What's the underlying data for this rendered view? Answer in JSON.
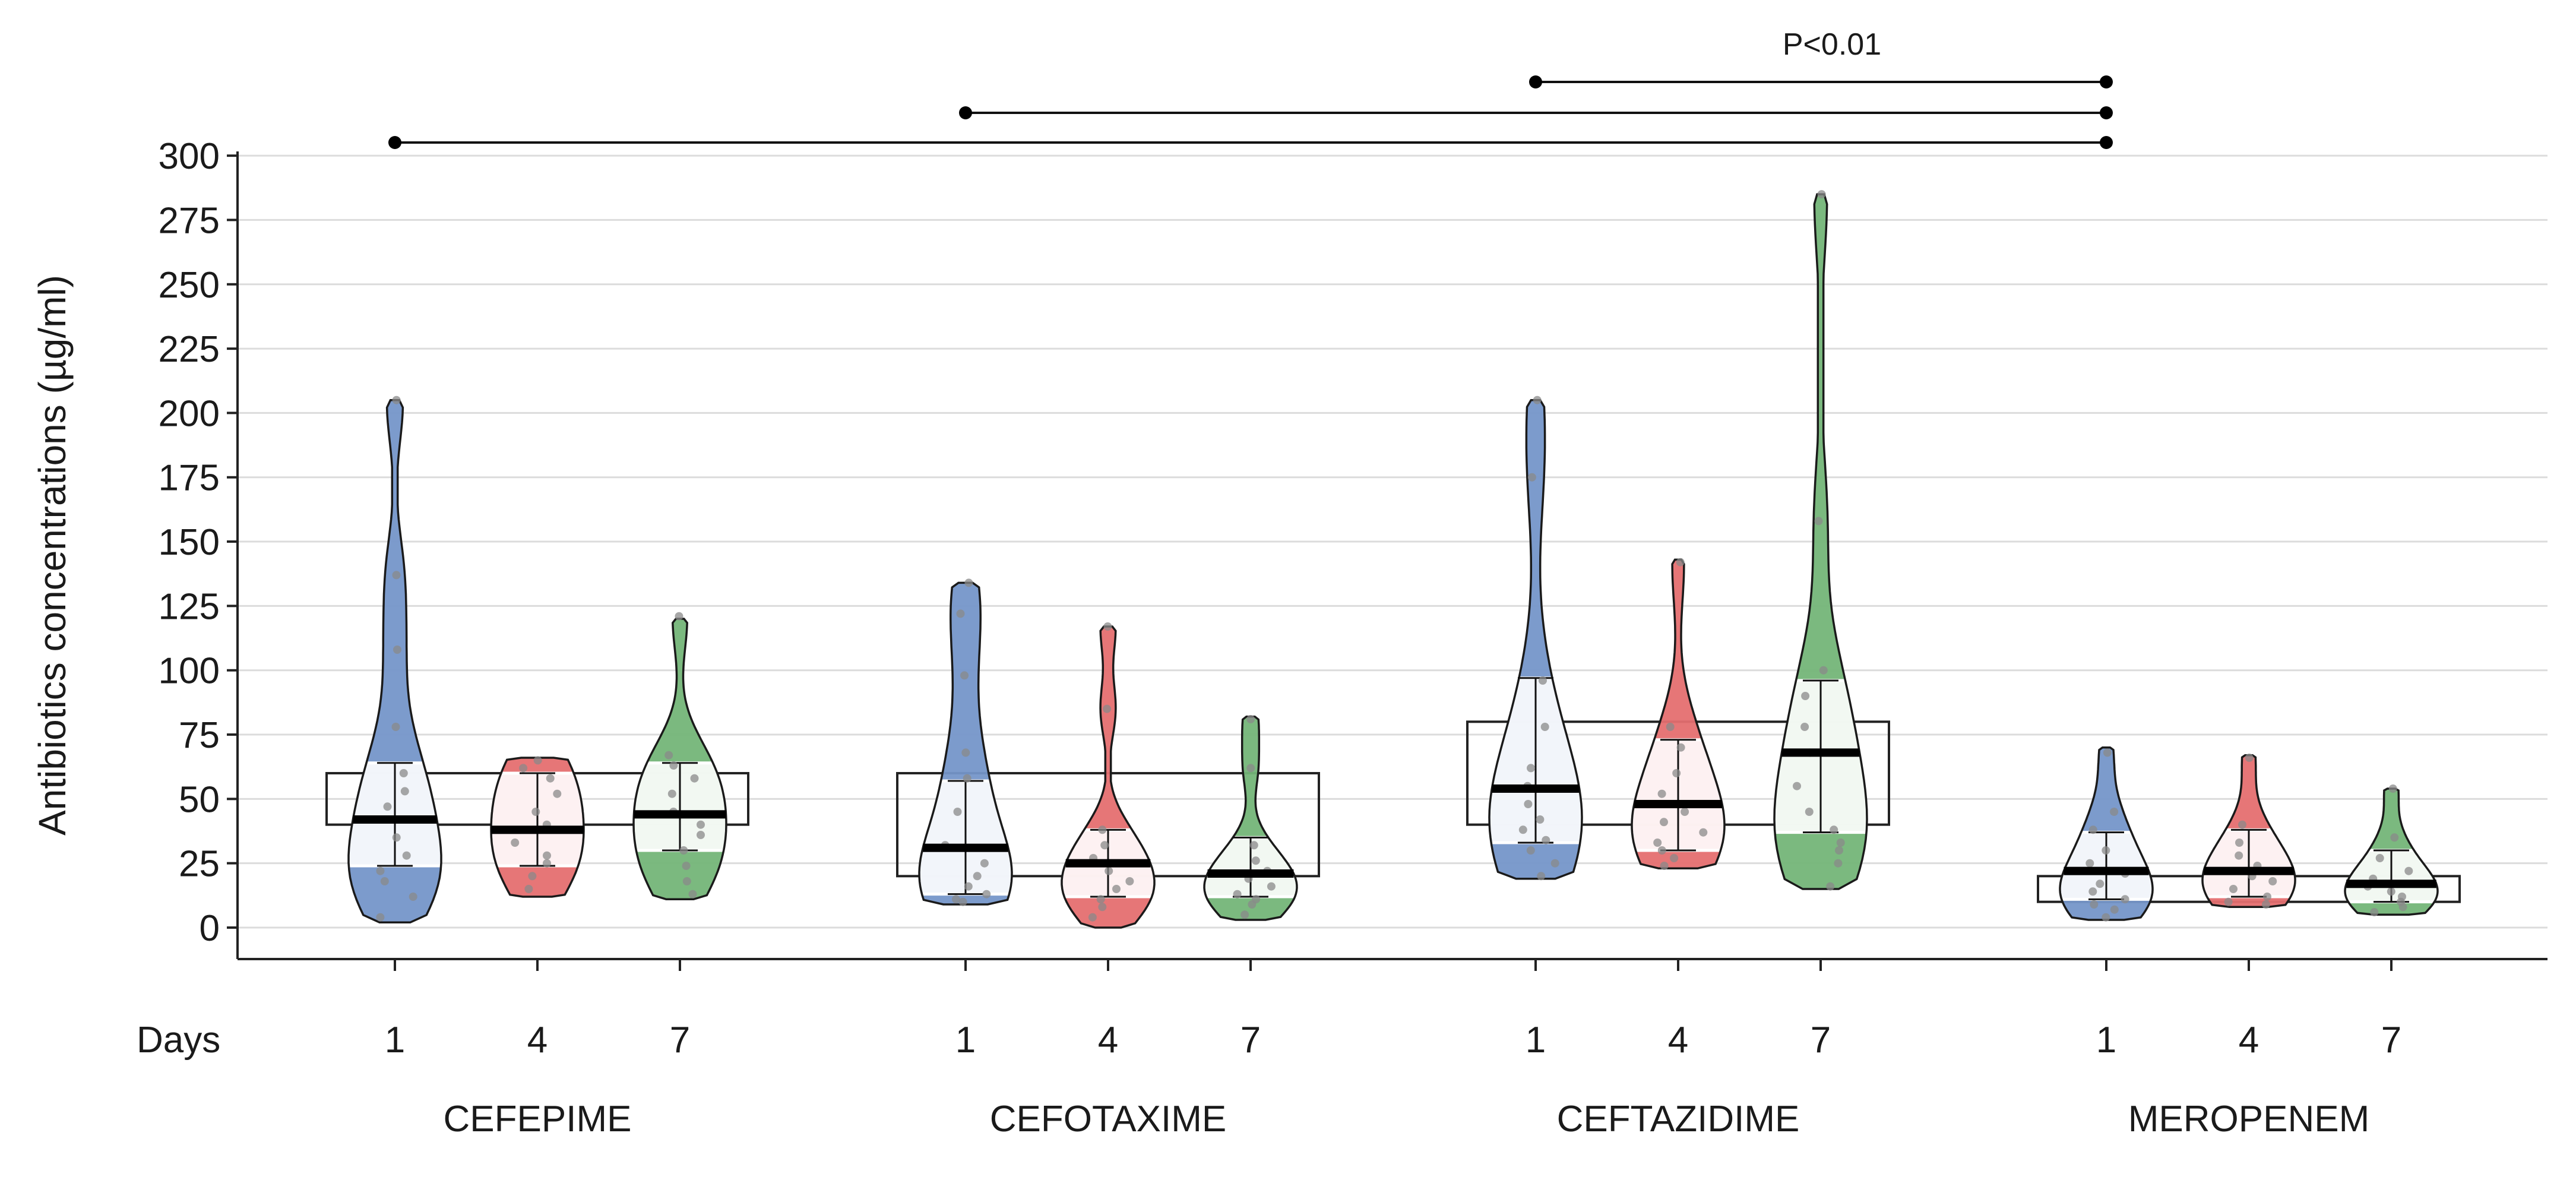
{
  "chart_data": {
    "type": "violin",
    "title": "",
    "ylabel": "Antibiotics concentrations (µg/ml)",
    "xlabel_prefix": "Days",
    "ylim": [
      -12,
      312
    ],
    "yticks": [
      0,
      25,
      50,
      75,
      100,
      125,
      150,
      175,
      200,
      225,
      250,
      275,
      300
    ],
    "grid": true,
    "day_colors": {
      "1": "#7596c9",
      "4": "#e56f70",
      "7": "#74b578"
    },
    "significance": {
      "label": "P<0.01",
      "comparisons": [
        {
          "from": "CEFTAZIDIME",
          "to": "MEROPENEM"
        },
        {
          "from": "CEFOTAXIME",
          "to": "MEROPENEM"
        },
        {
          "from": "CEFEPIME",
          "to": "MEROPENEM"
        }
      ]
    },
    "groups": [
      {
        "name": "CEFEPIME",
        "target_range": [
          40,
          60
        ],
        "series": [
          {
            "day": "1",
            "min": 2,
            "max": 205,
            "mean": 42,
            "q1": 24,
            "q3": 64,
            "points": [
              4,
              12,
              18,
              22,
              28,
              35,
              47,
              53,
              60,
              78,
              108,
              137,
              205
            ]
          },
          {
            "day": "4",
            "min": 12,
            "max": 66,
            "mean": 38,
            "q1": 24,
            "q3": 60,
            "points": [
              15,
              20,
              25,
              28,
              33,
              40,
              45,
              52,
              58,
              62,
              65
            ]
          },
          {
            "day": "7",
            "min": 11,
            "max": 120,
            "mean": 44,
            "q1": 30,
            "q3": 64,
            "points": [
              13,
              18,
              24,
              30,
              36,
              40,
              45,
              52,
              58,
              63,
              67,
              121
            ]
          }
        ]
      },
      {
        "name": "CEFOTAXIME",
        "target_range": [
          20,
          60
        ],
        "series": [
          {
            "day": "1",
            "min": 9,
            "max": 134,
            "mean": 31,
            "q1": 13,
            "q3": 57,
            "points": [
              10,
              11,
              13,
              16,
              20,
              25,
              32,
              45,
              58,
              68,
              98,
              122,
              134
            ]
          },
          {
            "day": "4",
            "min": 0,
            "max": 117,
            "mean": 25,
            "q1": 12,
            "q3": 38,
            "points": [
              4,
              8,
              11,
              15,
              18,
              22,
              27,
              32,
              38,
              85,
              117
            ]
          },
          {
            "day": "7",
            "min": 3,
            "max": 82,
            "mean": 21,
            "q1": 12,
            "q3": 35,
            "points": [
              5,
              9,
              11,
              13,
              16,
              19,
              22,
              26,
              32,
              62,
              81
            ]
          }
        ]
      },
      {
        "name": "CEFTAZIDIME",
        "target_range": [
          40,
          80
        ],
        "series": [
          {
            "day": "1",
            "min": 19,
            "max": 205,
            "mean": 54,
            "q1": 33,
            "q3": 97,
            "points": [
              20,
              25,
              30,
              34,
              38,
              42,
              48,
              55,
              62,
              78,
              96,
              175,
              205
            ]
          },
          {
            "day": "4",
            "min": 23,
            "max": 143,
            "mean": 48,
            "q1": 30,
            "q3": 73,
            "points": [
              24,
              27,
              30,
              33,
              37,
              41,
              45,
              52,
              60,
              70,
              78,
              142
            ]
          },
          {
            "day": "7",
            "min": 15,
            "max": 285,
            "mean": 68,
            "q1": 37,
            "q3": 96,
            "points": [
              16,
              25,
              30,
              33,
              38,
              45,
              55,
              68,
              78,
              90,
              100,
              158,
              285
            ]
          }
        ]
      },
      {
        "name": "MEROPENEM",
        "target_range": [
          10,
          20
        ],
        "series": [
          {
            "day": "1",
            "min": 3,
            "max": 70,
            "mean": 22,
            "q1": 11,
            "q3": 37,
            "points": [
              4,
              7,
              9,
              11,
              14,
              17,
              21,
              25,
              30,
              38,
              45,
              68
            ]
          },
          {
            "day": "4",
            "min": 8,
            "max": 67,
            "mean": 22,
            "q1": 12,
            "q3": 38,
            "points": [
              9,
              10,
              12,
              15,
              18,
              20,
              24,
              28,
              33,
              40,
              66
            ]
          },
          {
            "day": "7",
            "min": 5,
            "max": 54,
            "mean": 17,
            "q1": 10,
            "q3": 30,
            "points": [
              6,
              8,
              10,
              12,
              14,
              16,
              19,
              22,
              27,
              35,
              54
            ]
          }
        ]
      }
    ]
  }
}
